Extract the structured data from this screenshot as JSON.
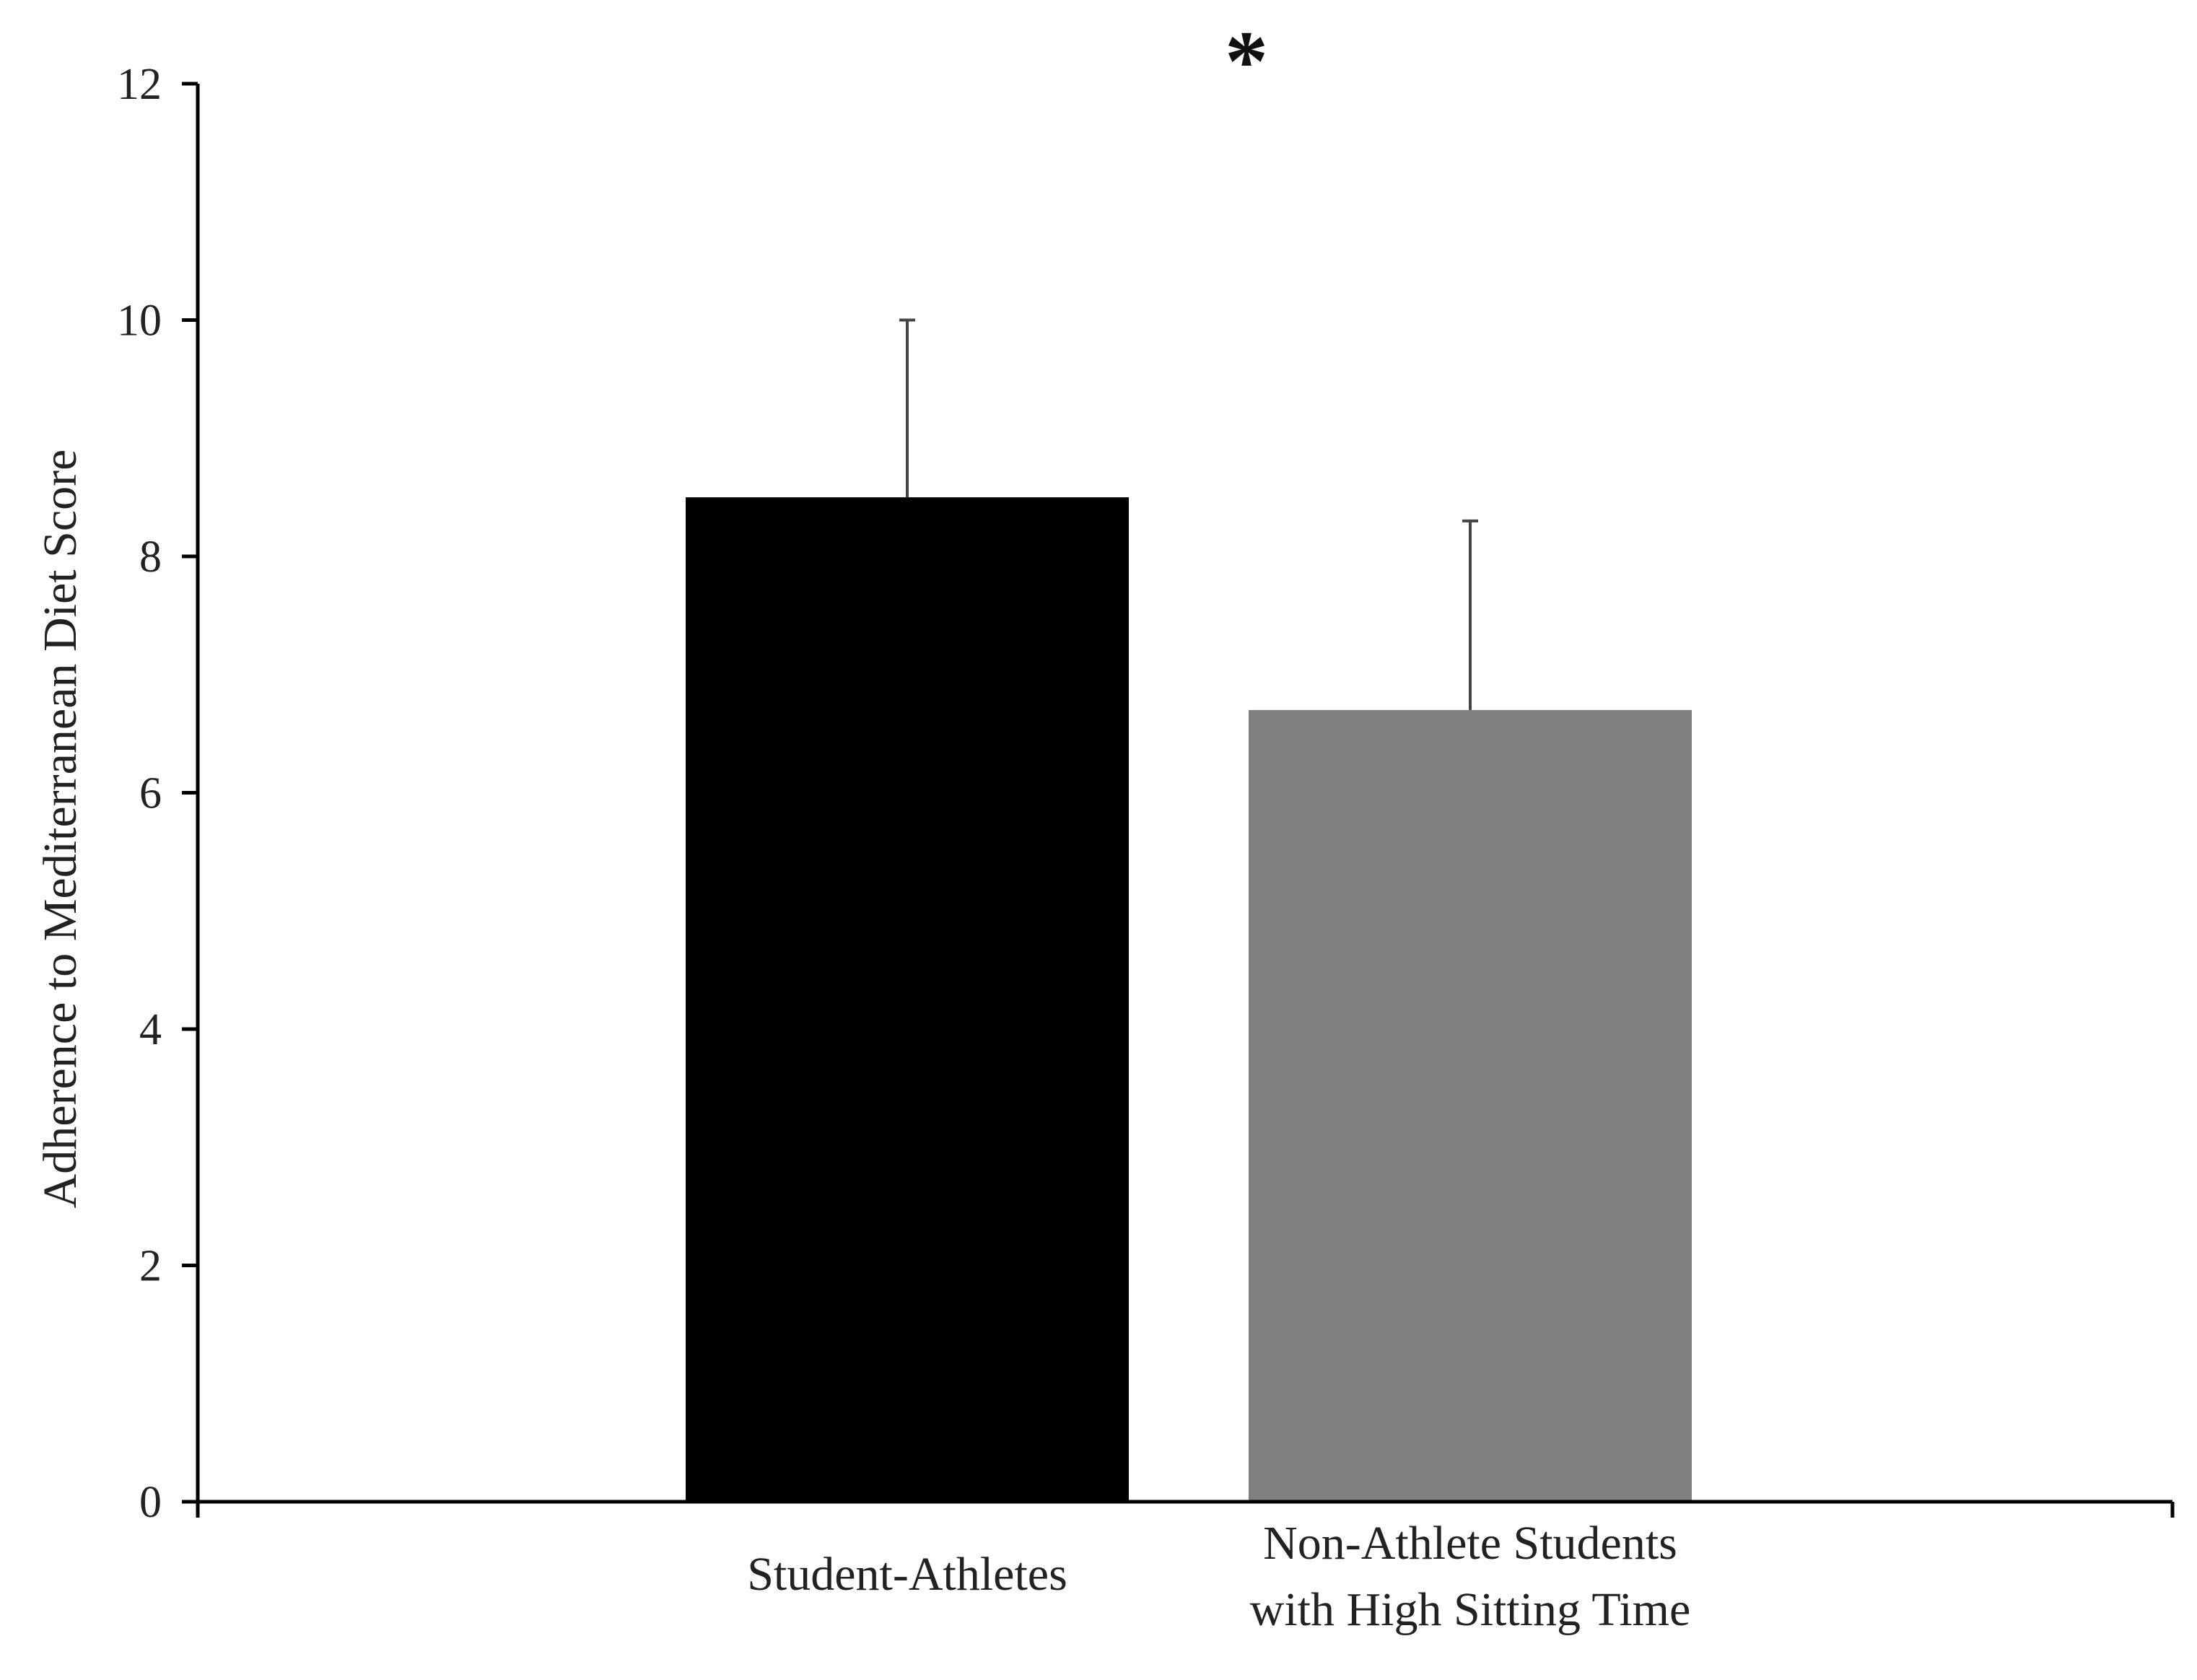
{
  "chart_data": {
    "type": "bar",
    "title": "",
    "xlabel": "",
    "ylabel": "Adherence to Mediterranean Diet Score",
    "ylim": [
      0,
      12
    ],
    "yticks": [
      0,
      2,
      4,
      6,
      8,
      10,
      12
    ],
    "grid": false,
    "legend": "none",
    "categories": [
      [
        "Student-Athletes"
      ],
      [
        "Non-Athlete Students",
        "with High Sitting Time"
      ]
    ],
    "values": [
      8.5,
      6.7
    ],
    "error_upper": [
      10.0,
      8.3
    ],
    "bar_colors": [
      "#000000",
      "#808080"
    ],
    "annotation": {
      "text": "*"
    }
  }
}
